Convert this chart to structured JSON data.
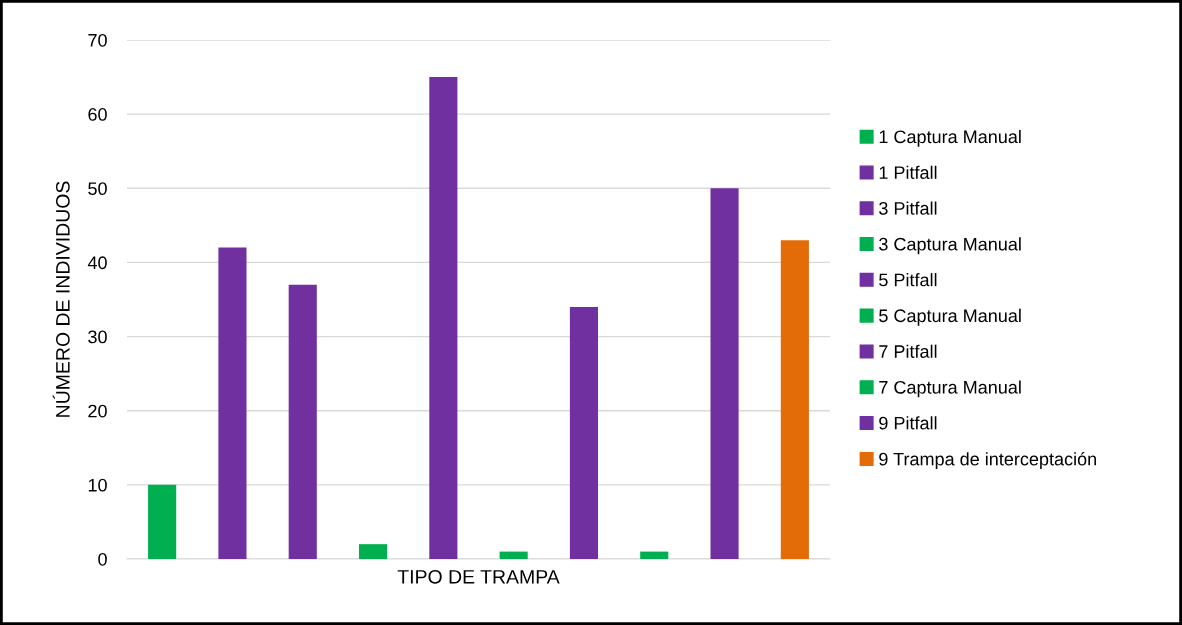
{
  "chart_data": {
    "type": "bar",
    "xlabel": "TIPO DE TRAMPA",
    "ylabel": "NÚMERO DE INDIVIDUOS",
    "categories": [
      null
    ],
    "series": [
      {
        "name": "1 Captura Manual",
        "color": "#00b050",
        "values": [
          10
        ]
      },
      {
        "name": "1 Pitfall",
        "color": "#7030a0",
        "values": [
          42
        ]
      },
      {
        "name": "3 Pitfall",
        "color": "#7030a0",
        "values": [
          37
        ]
      },
      {
        "name": "3 Captura Manual",
        "color": "#00b050",
        "values": [
          2
        ]
      },
      {
        "name": "5 Pitfall",
        "color": "#7030a0",
        "values": [
          65
        ]
      },
      {
        "name": "5 Captura Manual",
        "color": "#00b050",
        "values": [
          1
        ]
      },
      {
        "name": "7 Pitfall",
        "color": "#7030a0",
        "values": [
          34
        ]
      },
      {
        "name": "7 Captura Manual",
        "color": "#00b050",
        "values": [
          1
        ]
      },
      {
        "name": "9 Pitfall",
        "color": "#7030a0",
        "values": [
          50
        ]
      },
      {
        "name": "9 Trampa de interceptación",
        "color": "#e36c09",
        "values": [
          43
        ]
      }
    ],
    "ylim": [
      0,
      70
    ],
    "yticks": [
      0,
      10,
      20,
      30,
      40,
      50,
      60,
      70
    ],
    "grid": "y",
    "legend": "right"
  }
}
